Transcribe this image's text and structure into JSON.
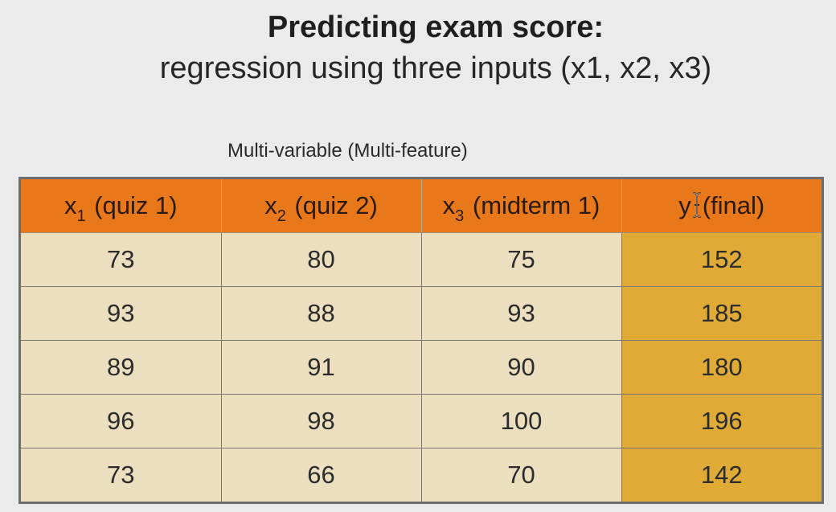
{
  "slide": {
    "title": "Predicting exam score:",
    "subtitle": "regression using three inputs (x1, x2, x3)",
    "caption": "Multi-variable (Multi-feature)"
  },
  "table": {
    "headers": [
      {
        "var": "x",
        "sub": "1",
        "rest": " (quiz 1)"
      },
      {
        "var": "x",
        "sub": "2",
        "rest": " (quiz 2)"
      },
      {
        "var": "x",
        "sub": "3",
        "rest": " (midterm 1)"
      },
      {
        "var": "y",
        "sub": "",
        "rest": "(final)"
      }
    ],
    "rows": [
      [
        "73",
        "80",
        "75",
        "152"
      ],
      [
        "93",
        "88",
        "93",
        "185"
      ],
      [
        "89",
        "91",
        "90",
        "180"
      ],
      [
        "96",
        "98",
        "100",
        "196"
      ],
      [
        "73",
        "66",
        "70",
        "142"
      ]
    ]
  },
  "colors": {
    "header": "#e8781a",
    "body_cell": "#ecdfc0",
    "target_column": "#dfab36",
    "background": "#ebebeb"
  },
  "icons": {
    "cursor": "text-cursor-icon"
  }
}
